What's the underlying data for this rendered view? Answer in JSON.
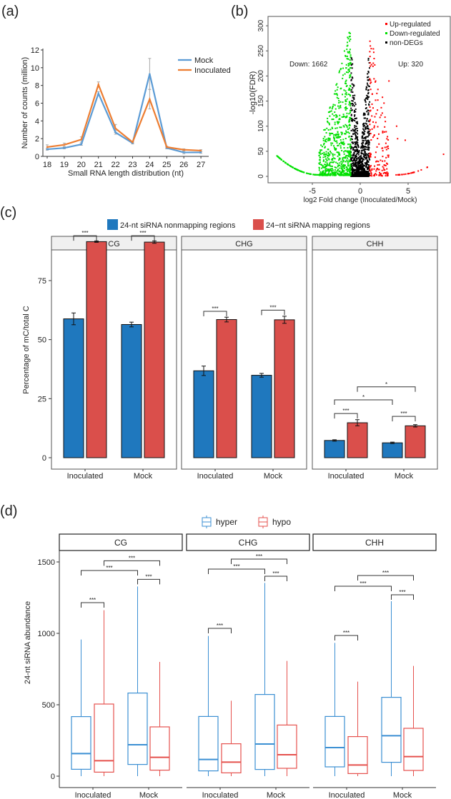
{
  "panel_labels": {
    "a": "(a)",
    "b": "(b)",
    "c": "(c)",
    "d": "(d)"
  },
  "chart_data": [
    {
      "id": "a",
      "type": "line",
      "xlabel": "Small RNA length distribution (nt)",
      "ylabel": "Number of counts (million)",
      "x": [
        18,
        19,
        20,
        21,
        22,
        23,
        24,
        25,
        26,
        27
      ],
      "ylim": [
        0,
        12
      ],
      "yticks": [
        0,
        2,
        4,
        6,
        8,
        10,
        12
      ],
      "legend_position": "top-right",
      "series": [
        {
          "name": "Mock",
          "color": "#5B9BD5",
          "values": [
            0.8,
            0.95,
            1.35,
            7.1,
            2.7,
            1.5,
            9.3,
            0.95,
            0.45,
            0.45
          ],
          "errors": [
            0.1,
            0.1,
            0.1,
            0.2,
            0.2,
            0.1,
            1.75,
            0.1,
            0.15,
            0.1
          ]
        },
        {
          "name": "Inoculated",
          "color": "#ED7D31",
          "values": [
            1.05,
            1.3,
            1.9,
            8.1,
            3.15,
            1.6,
            6.45,
            1.05,
            0.75,
            0.65
          ],
          "errors": [
            0.25,
            0.2,
            0.3,
            0.3,
            0.45,
            0.1,
            1.1,
            0.1,
            0.1,
            0.1
          ]
        }
      ]
    },
    {
      "id": "b",
      "type": "scatter",
      "xlabel": "log2 Fold change (Inoculated/Mock)",
      "ylabel": "-log10(FDR)",
      "xlim": [
        -9.5,
        9.5
      ],
      "ylim": [
        -10,
        320
      ],
      "xticks": [
        -5,
        0,
        5
      ],
      "yticks": [
        0,
        50,
        100,
        150,
        200,
        250,
        300
      ],
      "legend_position": "top-right",
      "legend": [
        {
          "label": "Up-regulated",
          "color": "#FF0000"
        },
        {
          "label": "Down-regulated",
          "color": "#00E000"
        },
        {
          "label": "non-DEGs",
          "color": "#000000"
        }
      ],
      "annotations": {
        "down": "Down: 1662",
        "up": "Up: 320"
      },
      "counts": {
        "down": 1662,
        "up": 320
      },
      "fold_change_threshold": 1
    },
    {
      "id": "c",
      "type": "bar",
      "ylabel": "Percentage of mC/total C",
      "ylim": [
        0,
        97
      ],
      "yticks": [
        0,
        25,
        50,
        75
      ],
      "facets": [
        "CG",
        "CHG",
        "CHH"
      ],
      "categories": [
        "Inoculated",
        "Mock"
      ],
      "legend_position": "top",
      "series": [
        {
          "name": "24-nt siRNA nonmapping regions",
          "color": "#1F78BE",
          "values": {
            "CG": [
              58.8,
              56.4
            ],
            "CHG": [
              36.8,
              34.9
            ],
            "CHH": [
              7.3,
              6.3
            ]
          },
          "errors": {
            "CG": [
              2.5,
              1.0
            ],
            "CHG": [
              2.0,
              0.8
            ],
            "CHH": [
              0.3,
              0.3
            ]
          }
        },
        {
          "name": "24−nt siRNA mapping regions",
          "color": "#DA4F4B",
          "values": {
            "CG": [
              91.5,
              91.3
            ],
            "CHG": [
              58.5,
              58.4
            ],
            "CHH": [
              14.8,
              13.5
            ]
          },
          "errors": {
            "CG": [
              0.3,
              0.5
            ],
            "CHG": [
              1.0,
              1.5
            ],
            "CHH": [
              1.3,
              0.5
            ]
          }
        }
      ],
      "significance": [
        {
          "facet": "CG",
          "from": [
            0,
            0
          ],
          "to": [
            0,
            1
          ],
          "y": 94,
          "label": "***"
        },
        {
          "facet": "CG",
          "from": [
            1,
            0
          ],
          "to": [
            1,
            1
          ],
          "y": 94,
          "label": "***"
        },
        {
          "facet": "CHG",
          "from": [
            0,
            0
          ],
          "to": [
            0,
            1
          ],
          "y": 62,
          "label": "***"
        },
        {
          "facet": "CHG",
          "from": [
            1,
            0
          ],
          "to": [
            1,
            1
          ],
          "y": 62.5,
          "label": "***"
        },
        {
          "facet": "CHH",
          "from": [
            0,
            0
          ],
          "to": [
            0,
            1
          ],
          "y": 18.7,
          "label": "***"
        },
        {
          "facet": "CHH",
          "from": [
            1,
            0
          ],
          "to": [
            1,
            1
          ],
          "y": 17.5,
          "label": "***"
        },
        {
          "facet": "CHH",
          "from": [
            0,
            0
          ],
          "to": [
            1,
            0
          ],
          "y": 24.5,
          "label": "*"
        },
        {
          "facet": "CHH",
          "from": [
            0,
            1
          ],
          "to": [
            1,
            1
          ],
          "y": 30,
          "label": "*"
        }
      ]
    },
    {
      "id": "d",
      "type": "box",
      "ylabel": "24-nt siRNA abundance",
      "ylim": [
        0,
        1600
      ],
      "yticks": [
        0,
        500,
        1000,
        1500
      ],
      "facets": [
        "CG",
        "CHG",
        "CHH"
      ],
      "categories": [
        "Inoculated",
        "Mock"
      ],
      "legend_position": "top",
      "series": [
        {
          "name": "hyper",
          "color": "#3B8FD3",
          "boxes": {
            "CG": [
              {
                "min": 0,
                "q1": 48,
                "median": 158,
                "q3": 417,
                "max": 957
              },
              {
                "min": 0,
                "q1": 82,
                "median": 220,
                "q3": 582,
                "max": 1328
              }
            ],
            "CHG": [
              {
                "min": 0,
                "q1": 37,
                "median": 117,
                "q3": 418,
                "max": 982
              },
              {
                "min": 0,
                "q1": 47,
                "median": 225,
                "q3": 572,
                "max": 1353
              }
            ],
            "CHH": [
              {
                "min": 0,
                "q1": 65,
                "median": 200,
                "q3": 418,
                "max": 933
              },
              {
                "min": 0,
                "q1": 97,
                "median": 283,
                "q3": 552,
                "max": 1225
              }
            ]
          }
        },
        {
          "name": "hypo",
          "color": "#E5514D",
          "boxes": {
            "CG": [
              {
                "min": 0,
                "q1": 28,
                "median": 108,
                "q3": 505,
                "max": 1162
              },
              {
                "min": 0,
                "q1": 42,
                "median": 132,
                "q3": 345,
                "max": 800
              }
            ],
            "CHG": [
              {
                "min": 0,
                "q1": 23,
                "median": 98,
                "q3": 227,
                "max": 528
              },
              {
                "min": 0,
                "q1": 55,
                "median": 150,
                "q3": 358,
                "max": 807
              }
            ],
            "CHH": [
              {
                "min": 0,
                "q1": 18,
                "median": 78,
                "q3": 277,
                "max": 662
              },
              {
                "min": 0,
                "q1": 40,
                "median": 137,
                "q3": 335,
                "max": 772
              }
            ]
          }
        }
      ],
      "significance": [
        {
          "facet": "CG",
          "from": [
            0,
            0
          ],
          "to": [
            0,
            1
          ],
          "y": 1215,
          "label": "***"
        },
        {
          "facet": "CG",
          "from": [
            1,
            0
          ],
          "to": [
            1,
            1
          ],
          "y": 1378,
          "label": "***"
        },
        {
          "facet": "CG",
          "from": [
            0,
            0
          ],
          "to": [
            1,
            0
          ],
          "y": 1440,
          "label": "***"
        },
        {
          "facet": "CG",
          "from": [
            0,
            1
          ],
          "to": [
            1,
            1
          ],
          "y": 1508,
          "label": "***"
        },
        {
          "facet": "CHG",
          "from": [
            0,
            0
          ],
          "to": [
            0,
            1
          ],
          "y": 1035,
          "label": "***"
        },
        {
          "facet": "CHG",
          "from": [
            1,
            0
          ],
          "to": [
            1,
            1
          ],
          "y": 1400,
          "label": "***"
        },
        {
          "facet": "CHG",
          "from": [
            0,
            0
          ],
          "to": [
            1,
            0
          ],
          "y": 1450,
          "label": "***"
        },
        {
          "facet": "CHG",
          "from": [
            0,
            1
          ],
          "to": [
            1,
            1
          ],
          "y": 1520,
          "label": "***"
        },
        {
          "facet": "CHH",
          "from": [
            0,
            0
          ],
          "to": [
            0,
            1
          ],
          "y": 985,
          "label": "***"
        },
        {
          "facet": "CHH",
          "from": [
            1,
            0
          ],
          "to": [
            1,
            1
          ],
          "y": 1270,
          "label": "***"
        },
        {
          "facet": "CHH",
          "from": [
            0,
            0
          ],
          "to": [
            1,
            0
          ],
          "y": 1330,
          "label": "***"
        },
        {
          "facet": "CHH",
          "from": [
            0,
            1
          ],
          "to": [
            1,
            1
          ],
          "y": 1405,
          "label": "***"
        }
      ]
    }
  ]
}
